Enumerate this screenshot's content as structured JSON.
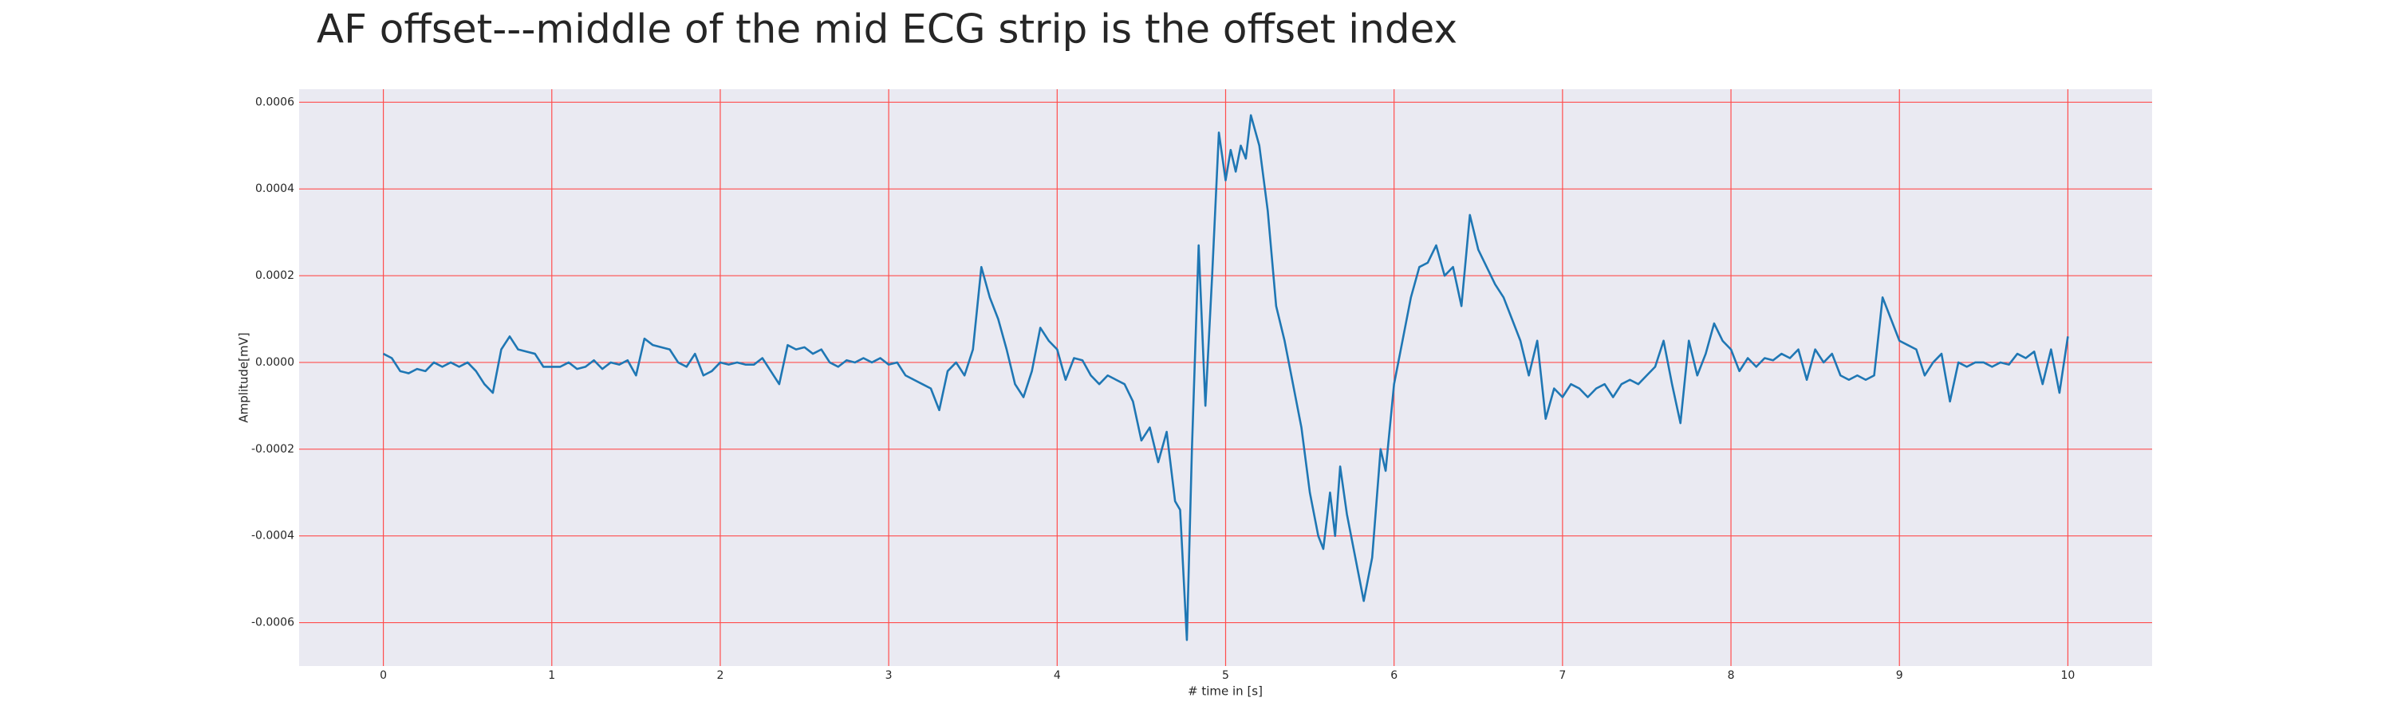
{
  "chart_data": {
    "type": "line",
    "title": "AF offset---middle of the mid ECG strip is the offset index",
    "xlabel": "# time in [s]",
    "ylabel": "Amplitude[mV]",
    "xlim": [
      -0.5,
      10.5
    ],
    "ylim": [
      -0.0007,
      0.00063
    ],
    "xticks": [
      0,
      1,
      2,
      3,
      4,
      5,
      6,
      7,
      8,
      9,
      10
    ],
    "yticks": [
      -0.0006,
      -0.0004,
      -0.0002,
      {
        "value": 0,
        "label": "0.0000"
      },
      0.0002,
      0.0004,
      0.0006
    ],
    "grid": true,
    "grid_color": "#ff4d4d",
    "background": "#eaeaf2",
    "series": [
      {
        "color": "#1f77b4",
        "x": [
          0,
          0.05,
          0.1,
          0.15,
          0.2,
          0.25,
          0.3,
          0.35,
          0.4,
          0.45,
          0.5,
          0.55,
          0.6,
          0.65,
          0.7,
          0.75,
          0.8,
          0.85,
          0.9,
          0.95,
          1,
          1.05,
          1.1,
          1.15,
          1.2,
          1.25,
          1.3,
          1.35,
          1.4,
          1.45,
          1.5,
          1.55,
          1.6,
          1.65,
          1.7,
          1.75,
          1.8,
          1.85,
          1.9,
          1.95,
          2,
          2.05,
          2.1,
          2.15,
          2.2,
          2.25,
          2.3,
          2.35,
          2.4,
          2.45,
          2.5,
          2.55,
          2.6,
          2.65,
          2.7,
          2.75,
          2.8,
          2.85,
          2.9,
          2.95,
          3,
          3.05,
          3.1,
          3.15,
          3.2,
          3.25,
          3.3,
          3.35,
          3.4,
          3.45,
          3.5,
          3.55,
          3.6,
          3.65,
          3.7,
          3.75,
          3.8,
          3.85,
          3.9,
          3.95,
          4,
          4.05,
          4.1,
          4.15,
          4.2,
          4.25,
          4.3,
          4.35,
          4.4,
          4.45,
          4.5,
          4.55,
          4.6,
          4.65,
          4.7,
          4.73,
          4.77,
          4.8,
          4.84,
          4.88,
          4.92,
          4.96,
          5,
          5.03,
          5.06,
          5.09,
          5.12,
          5.15,
          5.2,
          5.25,
          5.3,
          5.35,
          5.4,
          5.45,
          5.5,
          5.55,
          5.58,
          5.62,
          5.65,
          5.68,
          5.72,
          5.77,
          5.82,
          5.87,
          5.92,
          5.95,
          6,
          6.05,
          6.1,
          6.15,
          6.2,
          6.25,
          6.3,
          6.35,
          6.4,
          6.45,
          6.5,
          6.55,
          6.6,
          6.65,
          6.7,
          6.75,
          6.8,
          6.85,
          6.9,
          6.95,
          7,
          7.05,
          7.1,
          7.15,
          7.2,
          7.25,
          7.3,
          7.35,
          7.4,
          7.45,
          7.5,
          7.55,
          7.6,
          7.65,
          7.7,
          7.75,
          7.8,
          7.85,
          7.9,
          7.95,
          8,
          8.05,
          8.1,
          8.15,
          8.2,
          8.25,
          8.3,
          8.35,
          8.4,
          8.45,
          8.5,
          8.55,
          8.6,
          8.65,
          8.7,
          8.75,
          8.8,
          8.85,
          8.9,
          8.95,
          9,
          9.05,
          9.1,
          9.15,
          9.2,
          9.25,
          9.3,
          9.35,
          9.4,
          9.45,
          9.5,
          9.55,
          9.6,
          9.65,
          9.7,
          9.75,
          9.8,
          9.85,
          9.9,
          9.95,
          10
        ],
        "values": [
          2e-05,
          1e-05,
          -2e-05,
          -2.5e-05,
          -1.5e-05,
          -2e-05,
          0,
          -1e-05,
          0,
          -1e-05,
          0,
          -2e-05,
          -5e-05,
          -7e-05,
          3e-05,
          6e-05,
          3e-05,
          2.5e-05,
          2e-05,
          -1e-05,
          -1e-05,
          -1e-05,
          0,
          -1.5e-05,
          -1e-05,
          5e-06,
          -1.5e-05,
          0,
          -5e-06,
          5e-06,
          -3e-05,
          5.5e-05,
          4e-05,
          3.5e-05,
          3e-05,
          0,
          -1e-05,
          2e-05,
          -3e-05,
          -2e-05,
          0,
          -5e-06,
          0,
          -5e-06,
          -5e-06,
          1e-05,
          -2e-05,
          -5e-05,
          4e-05,
          3e-05,
          3.5e-05,
          2e-05,
          3e-05,
          0,
          -1e-05,
          5e-06,
          0,
          1e-05,
          0,
          1e-05,
          -5e-06,
          0,
          -3e-05,
          -4e-05,
          -5e-05,
          -6e-05,
          -0.00011,
          -2e-05,
          0,
          -3e-05,
          3e-05,
          0.00022,
          0.00015,
          0.0001,
          3e-05,
          -5e-05,
          -8e-05,
          -2e-05,
          8e-05,
          5e-05,
          3e-05,
          -4e-05,
          1e-05,
          5e-06,
          -3e-05,
          -5e-05,
          -3e-05,
          -4e-05,
          -5e-05,
          -9e-05,
          -0.00018,
          -0.00015,
          -0.00023,
          -0.00016,
          -0.00032,
          -0.00034,
          -0.00064,
          -0.0002,
          0.00027,
          -0.0001,
          0.0002,
          0.00053,
          0.00042,
          0.00049,
          0.00044,
          0.0005,
          0.00047,
          0.00057,
          0.0005,
          0.00035,
          0.00013,
          5e-05,
          -5e-05,
          -0.00015,
          -0.0003,
          -0.0004,
          -0.00043,
          -0.0003,
          -0.0004,
          -0.00024,
          -0.00035,
          -0.00045,
          -0.00055,
          -0.00045,
          -0.0002,
          -0.00025,
          -5e-05,
          5e-05,
          0.00015,
          0.00022,
          0.00023,
          0.00027,
          0.0002,
          0.00022,
          0.00013,
          0.00034,
          0.00026,
          0.00022,
          0.00018,
          0.00015,
          0.0001,
          5e-05,
          -3e-05,
          5e-05,
          -0.00013,
          -6e-05,
          -8e-05,
          -5e-05,
          -6e-05,
          -8e-05,
          -6e-05,
          -5e-05,
          -8e-05,
          -5e-05,
          -4e-05,
          -5e-05,
          -3e-05,
          -1e-05,
          5e-05,
          -5e-05,
          -0.00014,
          5e-05,
          -3e-05,
          2e-05,
          9e-05,
          5e-05,
          3e-05,
          -2e-05,
          1e-05,
          -1e-05,
          1e-05,
          5e-06,
          2e-05,
          1e-05,
          3e-05,
          -4e-05,
          3e-05,
          0,
          2e-05,
          -3e-05,
          -4e-05,
          -3e-05,
          -4e-05,
          -3e-05,
          0.00015,
          0.0001,
          5e-05,
          4e-05,
          3e-05,
          -3e-05,
          0,
          2e-05,
          -9e-05,
          0,
          -1e-05,
          0,
          0,
          -1e-05,
          0,
          -5e-06,
          2e-05,
          1e-05,
          2.5e-05,
          -5e-05,
          3e-05,
          -7e-05,
          6e-05
        ]
      }
    ]
  }
}
